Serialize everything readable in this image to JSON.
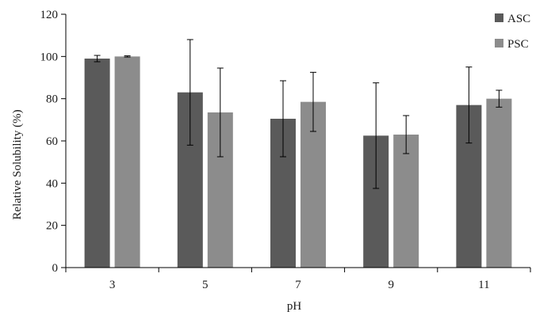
{
  "chart_data": {
    "type": "bar",
    "title": "",
    "xlabel": "pH",
    "ylabel": "Relative  Solubility  (%)",
    "ylim": [
      0,
      120
    ],
    "yticks": [
      0,
      20,
      40,
      60,
      80,
      100,
      120
    ],
    "grid": false,
    "legend_position": "top-right",
    "categories": [
      "3",
      "5",
      "7",
      "9",
      "11"
    ],
    "series": [
      {
        "name": "ASC",
        "color": "#5a5a5a",
        "values": [
          99,
          83,
          70.5,
          62.5,
          77
        ],
        "error": [
          1.5,
          25,
          18,
          25,
          18
        ]
      },
      {
        "name": "PSC",
        "color": "#8c8c8c",
        "values": [
          100,
          73.5,
          78.5,
          63,
          80
        ],
        "error": [
          0.3,
          21,
          14,
          9,
          4
        ]
      }
    ]
  }
}
